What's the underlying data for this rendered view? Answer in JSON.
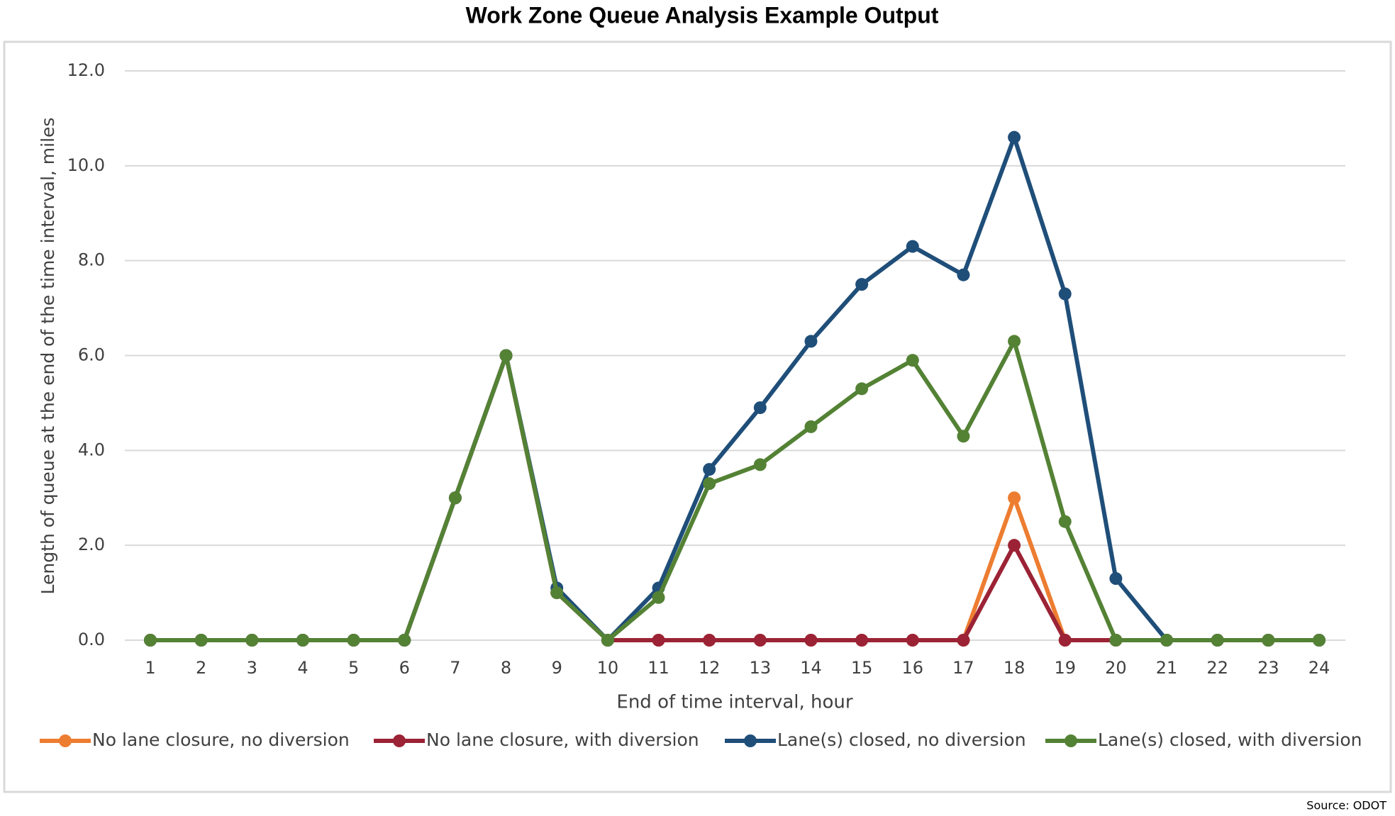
{
  "chart_data": {
    "type": "line",
    "title": "Work Zone Queue Analysis Example Output",
    "x_label": "End of time interval, hour",
    "y_label": "Length of queue at the end of the time interval, miles",
    "source": "Source: ODOT",
    "categories": [
      "1",
      "2",
      "3",
      "4",
      "5",
      "6",
      "7",
      "8",
      "9",
      "10",
      "11",
      "12",
      "13",
      "14",
      "15",
      "16",
      "17",
      "18",
      "19",
      "20",
      "21",
      "22",
      "23",
      "24"
    ],
    "series": [
      {
        "name": "No lane closure, no diversion",
        "color": "#ed7d31",
        "values": [
          0,
          0,
          0,
          0,
          0,
          0,
          3,
          6,
          1,
          0,
          0,
          0,
          0,
          0,
          0,
          0,
          0,
          3,
          0,
          0,
          0,
          0,
          0,
          0
        ]
      },
      {
        "name": "No lane closure, with diversion",
        "color": "#9b2335",
        "values": [
          0,
          0,
          0,
          0,
          0,
          0,
          3,
          6,
          1,
          0,
          0,
          0,
          0,
          0,
          0,
          0,
          0,
          2,
          0,
          0,
          0,
          0,
          0,
          0
        ]
      },
      {
        "name": "Lane(s) closed, no diversion",
        "color": "#1f4e79",
        "values": [
          0,
          0,
          0,
          0,
          0,
          0,
          3,
          6,
          1.1,
          0,
          1.1,
          3.6,
          4.9,
          6.3,
          7.5,
          8.3,
          7.7,
          10.6,
          7.3,
          1.3,
          0,
          0,
          0,
          0
        ]
      },
      {
        "name": "Lane(s) closed, with diversion",
        "color": "#548235",
        "values": [
          0,
          0,
          0,
          0,
          0,
          0,
          3,
          6,
          1.0,
          0,
          0.9,
          3.3,
          3.7,
          4.5,
          5.3,
          5.9,
          4.3,
          6.3,
          2.5,
          0,
          0,
          0,
          0,
          0
        ]
      }
    ],
    "ylim": [
      0,
      12
    ],
    "yticks": [
      {
        "value": 0,
        "label": "0.0"
      },
      {
        "value": 2,
        "label": "2.0"
      },
      {
        "value": 4,
        "label": "4.0"
      },
      {
        "value": 6,
        "label": "6.0"
      },
      {
        "value": 8,
        "label": "8.0"
      },
      {
        "value": 10,
        "label": "10.0"
      },
      {
        "value": 12,
        "label": "12.0"
      }
    ],
    "grid": true,
    "legend": "bottom"
  }
}
